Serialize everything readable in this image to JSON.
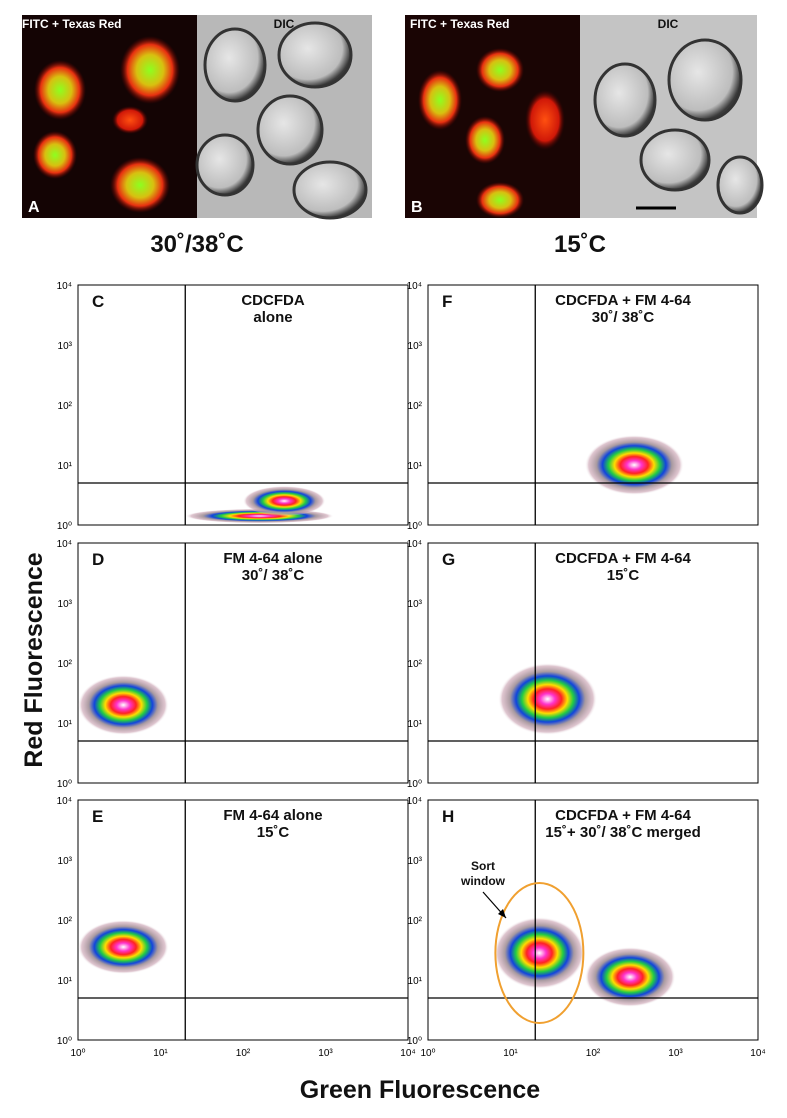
{
  "panels_top": [
    {
      "letter": "A",
      "left_label": "FITC + Texas Red",
      "right_label": "DIC",
      "caption": "30˚/38˚C"
    },
    {
      "letter": "B",
      "left_label": "FITC + Texas Red",
      "right_label": "DIC",
      "caption": "15˚C"
    }
  ],
  "plots": [
    {
      "letter": "C",
      "title": [
        "CDCFDA",
        "alone"
      ]
    },
    {
      "letter": "D",
      "title": [
        "FM 4-64 alone",
        "30˚/ 38˚C"
      ]
    },
    {
      "letter": "E",
      "title": [
        "FM 4-64 alone",
        "15˚C"
      ]
    },
    {
      "letter": "F",
      "title": [
        "CDCFDA + FM 4-64",
        "30˚/ 38˚C"
      ]
    },
    {
      "letter": "G",
      "title": [
        "CDCFDA + FM 4-64",
        "15˚C"
      ]
    },
    {
      "letter": "H",
      "title": [
        "CDCFDA + FM 4-64",
        "15˚+ 30˚/ 38˚C merged"
      ]
    }
  ],
  "axis_ticks": [
    "10⁰",
    "10¹",
    "10²",
    "10³",
    "10⁴"
  ],
  "y_label": "Red Fluorescence",
  "x_label": "Green Fluorescence",
  "annotation": [
    "Sort",
    "window"
  ]
}
